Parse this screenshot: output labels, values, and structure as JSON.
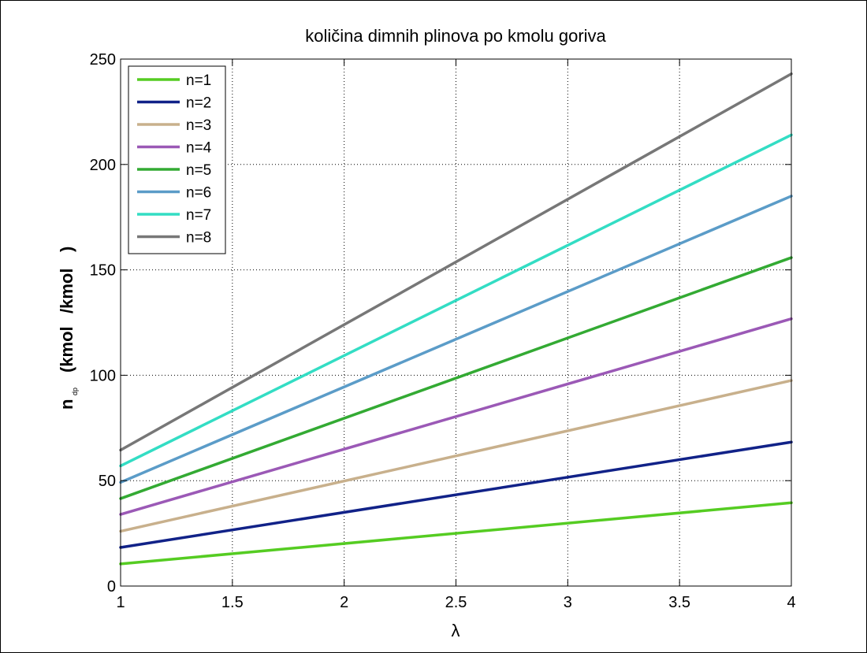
{
  "chart_data": {
    "type": "line",
    "title": "količina dimnih plinova po kmolu goriva",
    "xlabel": "λ",
    "ylabel": {
      "main": "n",
      "subscript": "dp",
      "units_prefix": "(kmol",
      "units_mid": "/kmol",
      "units_suffix": ")"
    },
    "xlim": [
      1,
      4
    ],
    "ylim": [
      0,
      250
    ],
    "xticks": [
      "1",
      "1.5",
      "2",
      "2.5",
      "3",
      "3.5",
      "4"
    ],
    "yticks": [
      "0",
      "50",
      "100",
      "150",
      "200",
      "250"
    ],
    "grid": true,
    "legend_position": "top-left",
    "x": [
      1,
      4
    ],
    "series": [
      {
        "name": "n=1",
        "color": "#55CC22",
        "values": [
          10.5,
          39.5
        ]
      },
      {
        "name": "n=2",
        "color": "#112288",
        "values": [
          18.3,
          68.3
        ]
      },
      {
        "name": "n=3",
        "color": "#C8B08C",
        "values": [
          26,
          97.5
        ]
      },
      {
        "name": "n=4",
        "color": "#9B59B6",
        "values": [
          34,
          126.8
        ]
      },
      {
        "name": "n=5",
        "color": "#33AA33",
        "values": [
          41.5,
          155.8
        ]
      },
      {
        "name": "n=6",
        "color": "#5B9CC8",
        "values": [
          49.2,
          185
        ]
      },
      {
        "name": "n=7",
        "color": "#33DDC4",
        "values": [
          57,
          214
        ]
      },
      {
        "name": "n=8",
        "color": "#777777",
        "values": [
          64.5,
          243
        ]
      }
    ]
  }
}
